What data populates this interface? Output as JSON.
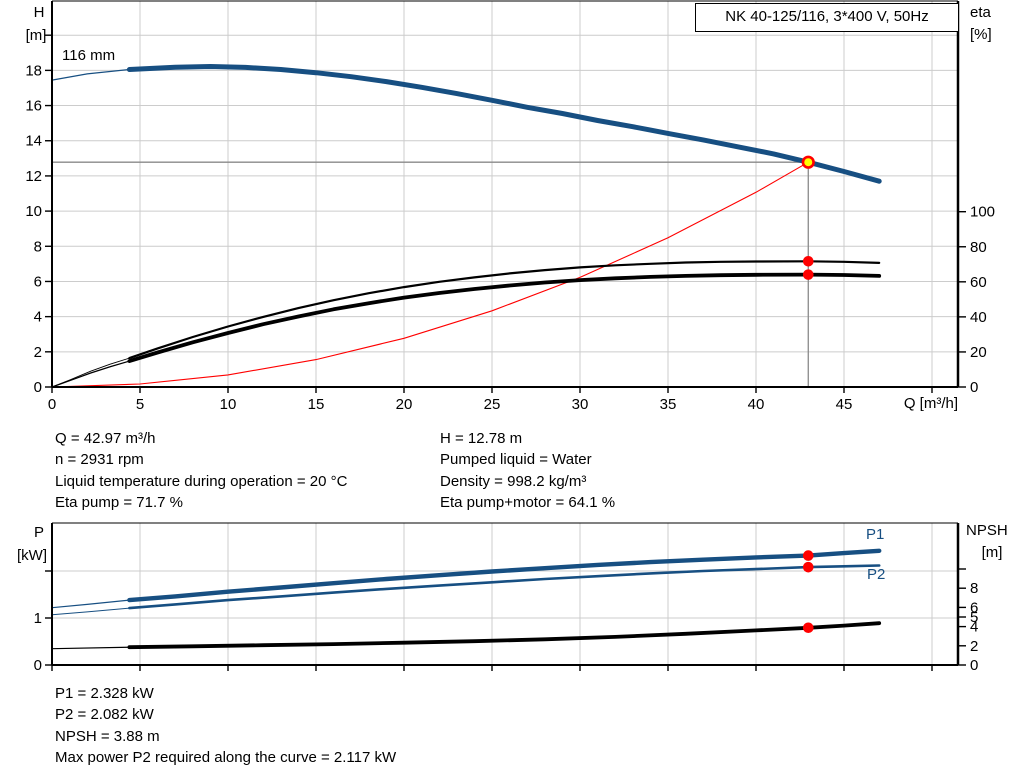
{
  "title_box": {
    "text": "NK 40-125/116, 3*400 V, 50Hz"
  },
  "colors": {
    "blue": "#174f82",
    "red": "#ff0000",
    "yellow": "#ffff00",
    "grid": "#cccccc",
    "guide": "#8a8a8a",
    "axis": "#000000"
  },
  "chart_data": [
    {
      "type": "line",
      "title": "NK 40-125/116, 3*400 V, 50Hz",
      "xlabel": "Q [m³/h]",
      "ylabel_left_lines": [
        "H",
        "[m]"
      ],
      "ylabel_right_lines": [
        "eta",
        "[%]"
      ],
      "curve_label": "116 mm",
      "xlim": [
        0,
        51.5
      ],
      "ylim_left": [
        0,
        21.9
      ],
      "ylim_right": [
        0,
        220
      ],
      "grid": true,
      "axes": {
        "x": {
          "tick_values": [
            0,
            5,
            10,
            15,
            20,
            25,
            30,
            35,
            40,
            45,
            50
          ],
          "label_values": [
            0,
            5,
            10,
            15,
            20,
            25,
            30,
            35,
            40,
            45
          ],
          "grid_values": [
            5,
            10,
            15,
            20,
            25,
            30,
            35,
            40,
            45,
            50
          ]
        },
        "left": {
          "scale": "h",
          "label_values": [
            0,
            2,
            4,
            6,
            8,
            10,
            12,
            14,
            16,
            18
          ],
          "extra_ticks": [
            20
          ],
          "grid_values": [
            2,
            4,
            6,
            8,
            10,
            12,
            14,
            16,
            18,
            20
          ]
        },
        "right": {
          "scale": "eta",
          "label_values": [
            0,
            20,
            40,
            60,
            80,
            100
          ],
          "extra_ticks": []
        }
      },
      "duty_point": {
        "q": 42.97,
        "h": 12.78,
        "eta_pump": 71.7,
        "eta_pump_motor": 64.1
      },
      "duty_guides": {
        "q": 42.97,
        "value": 12.78,
        "scale": "h"
      },
      "markers": [
        {
          "type": "duty",
          "q": 42.97,
          "v": 12.78,
          "scale": "h"
        },
        {
          "type": "dot",
          "q": 42.97,
          "v": 71.7,
          "scale": "eta"
        },
        {
          "type": "dot",
          "q": 42.97,
          "v": 64.1,
          "scale": "eta"
        }
      ],
      "series": [
        {
          "name": "System curve",
          "role": "system",
          "scale": "h",
          "thick_from": null,
          "points": [
            [
              0,
              0
            ],
            [
              5,
              0.17
            ],
            [
              10,
              0.69
            ],
            [
              15,
              1.56
            ],
            [
              20,
              2.77
            ],
            [
              25,
              4.33
            ],
            [
              30,
              6.23
            ],
            [
              35,
              8.48
            ],
            [
              40,
              11.07
            ],
            [
              42.97,
              12.78
            ]
          ]
        },
        {
          "name": "Eta pump+motor",
          "role": "eta_total",
          "scale": "eta",
          "thick_from": 4.4,
          "points": [
            [
              0,
              0
            ],
            [
              1,
              3.6
            ],
            [
              2.2,
              8
            ],
            [
              3.3,
              11.6
            ],
            [
              4.4,
              14.8
            ],
            [
              6,
              19.7
            ],
            [
              8,
              25.5
            ],
            [
              10,
              30.8
            ],
            [
              12,
              35.8
            ],
            [
              14,
              40.2
            ],
            [
              16,
              44.3
            ],
            [
              18,
              47.8
            ],
            [
              20,
              51
            ],
            [
              22,
              53.6
            ],
            [
              24,
              55.9
            ],
            [
              26,
              57.9
            ],
            [
              28,
              59.6
            ],
            [
              30,
              61
            ],
            [
              32,
              62
            ],
            [
              34,
              62.8
            ],
            [
              36,
              63.4
            ],
            [
              38,
              63.8
            ],
            [
              40,
              64
            ],
            [
              42.97,
              64.1
            ],
            [
              45,
              63.9
            ],
            [
              47,
              63.4
            ]
          ]
        },
        {
          "name": "Eta pump",
          "role": "eta_pump",
          "scale": "eta",
          "thick_from": 4.4,
          "points": [
            [
              0,
              0
            ],
            [
              1,
              4
            ],
            [
              2.2,
              9
            ],
            [
              3.3,
              13
            ],
            [
              4.4,
              16.5
            ],
            [
              6,
              22
            ],
            [
              8,
              28.5
            ],
            [
              10,
              34.5
            ],
            [
              12,
              40
            ],
            [
              14,
              45
            ],
            [
              16,
              49.5
            ],
            [
              18,
              53.5
            ],
            [
              20,
              57
            ],
            [
              22,
              60
            ],
            [
              24,
              62.5
            ],
            [
              26,
              64.8
            ],
            [
              28,
              66.7
            ],
            [
              30,
              68.2
            ],
            [
              32,
              69.4
            ],
            [
              34,
              70.3
            ],
            [
              36,
              71
            ],
            [
              38,
              71.4
            ],
            [
              40,
              71.6
            ],
            [
              42.97,
              71.7
            ],
            [
              45,
              71.4
            ],
            [
              47,
              70.8
            ]
          ]
        },
        {
          "name": "QH 116 mm",
          "role": "qh",
          "scale": "h",
          "thick_from": 4.4,
          "points": [
            [
              0,
              17.45
            ],
            [
              2,
              17.8
            ],
            [
              4.4,
              18.05
            ],
            [
              7,
              18.18
            ],
            [
              9,
              18.22
            ],
            [
              11,
              18.17
            ],
            [
              13,
              18.05
            ],
            [
              15,
              17.87
            ],
            [
              17,
              17.64
            ],
            [
              19,
              17.36
            ],
            [
              21,
              17.04
            ],
            [
              23,
              16.68
            ],
            [
              25,
              16.3
            ],
            [
              27,
              15.9
            ],
            [
              29,
              15.55
            ],
            [
              31,
              15.15
            ],
            [
              33,
              14.8
            ],
            [
              35,
              14.42
            ],
            [
              37,
              14.05
            ],
            [
              39,
              13.65
            ],
            [
              41,
              13.25
            ],
            [
              42.97,
              12.78
            ],
            [
              45,
              12.25
            ],
            [
              47,
              11.7
            ]
          ]
        }
      ]
    },
    {
      "type": "line",
      "xlabel": "",
      "ylabel_left_lines": [
        "P",
        "[kW]"
      ],
      "ylabel_right_lines": [
        "NPSH",
        "[m]"
      ],
      "p1_label": "P1",
      "p2_label": "P2",
      "xlim": [
        0,
        51.5
      ],
      "ylim_left": [
        0,
        3
      ],
      "ylim_right": [
        0,
        14.8
      ],
      "grid": true,
      "axes": {
        "x": {
          "tick_values": [
            0,
            5,
            10,
            15,
            20,
            25,
            30,
            35,
            40,
            45,
            50
          ],
          "label_values": [],
          "grid_values": [
            5,
            10,
            15,
            20,
            25,
            30,
            35,
            40,
            45,
            50
          ]
        },
        "left": {
          "scale": "p",
          "label_values": [
            0,
            1
          ],
          "extra_ticks": [
            2
          ],
          "grid_values": [
            1,
            2
          ]
        },
        "right": {
          "scale": "npsh",
          "label_values": [
            0,
            2,
            4,
            5,
            6,
            8
          ],
          "extra_ticks": [
            10
          ]
        }
      },
      "duty_point": {
        "q": 42.97,
        "p1": 2.328,
        "p2": 2.082,
        "npsh": 3.88
      },
      "markers": [
        {
          "type": "dot",
          "q": 42.97,
          "v": 2.328,
          "scale": "p"
        },
        {
          "type": "dot",
          "q": 42.97,
          "v": 2.082,
          "scale": "p"
        },
        {
          "type": "dot",
          "q": 42.97,
          "v": 3.88,
          "scale": "npsh"
        }
      ],
      "series": [
        {
          "name": "NPSH",
          "role": "npsh",
          "scale": "npsh",
          "thick_from": 4.4,
          "points": [
            [
              0,
              1.7
            ],
            [
              4.4,
              1.85
            ],
            [
              8,
              1.95
            ],
            [
              12,
              2.06
            ],
            [
              16,
              2.18
            ],
            [
              20,
              2.32
            ],
            [
              24,
              2.48
            ],
            [
              28,
              2.68
            ],
            [
              32,
              2.93
            ],
            [
              36,
              3.25
            ],
            [
              40,
              3.6
            ],
            [
              42.97,
              3.88
            ],
            [
              45,
              4.1
            ],
            [
              47,
              4.35
            ]
          ]
        },
        {
          "name": "P2",
          "role": "p2",
          "scale": "p",
          "thick_from": 4.4,
          "points": [
            [
              0,
              1.07
            ],
            [
              2,
              1.13
            ],
            [
              4.4,
              1.21
            ],
            [
              7,
              1.29
            ],
            [
              10,
              1.38
            ],
            [
              13,
              1.46
            ],
            [
              16,
              1.54
            ],
            [
              19,
              1.62
            ],
            [
              22,
              1.69
            ],
            [
              25,
              1.76
            ],
            [
              28,
              1.83
            ],
            [
              31,
              1.89
            ],
            [
              34,
              1.95
            ],
            [
              37,
              2.0
            ],
            [
              40,
              2.04
            ],
            [
              42.97,
              2.082
            ],
            [
              45,
              2.1
            ],
            [
              47,
              2.117
            ]
          ]
        },
        {
          "name": "P1",
          "role": "p1",
          "scale": "p",
          "thick_from": 4.4,
          "points": [
            [
              0,
              1.22
            ],
            [
              2,
              1.29
            ],
            [
              4.4,
              1.38
            ],
            [
              7,
              1.46
            ],
            [
              10,
              1.56
            ],
            [
              13,
              1.65
            ],
            [
              16,
              1.74
            ],
            [
              19,
              1.83
            ],
            [
              22,
              1.91
            ],
            [
              25,
              1.99
            ],
            [
              28,
              2.06
            ],
            [
              31,
              2.13
            ],
            [
              34,
              2.19
            ],
            [
              37,
              2.24
            ],
            [
              40,
              2.29
            ],
            [
              42.97,
              2.328
            ],
            [
              45,
              2.38
            ],
            [
              47,
              2.43
            ]
          ]
        }
      ]
    }
  ],
  "info_block_1": {
    "left_lines": [
      "Q = 42.97 m³/h",
      "n = 2931 rpm",
      "Liquid temperature during operation = 20 °C",
      "Eta pump = 71.7 %"
    ],
    "right_lines": [
      "H = 12.78 m",
      "Pumped liquid = Water",
      "Density = 998.2 kg/m³",
      "Eta pump+motor = 64.1 %"
    ]
  },
  "info_block_2": {
    "lines": [
      "P1 = 2.328 kW",
      "P2 = 2.082 kW",
      "NPSH = 3.88 m",
      "Max power P2 required along the curve = 2.117 kW"
    ]
  }
}
